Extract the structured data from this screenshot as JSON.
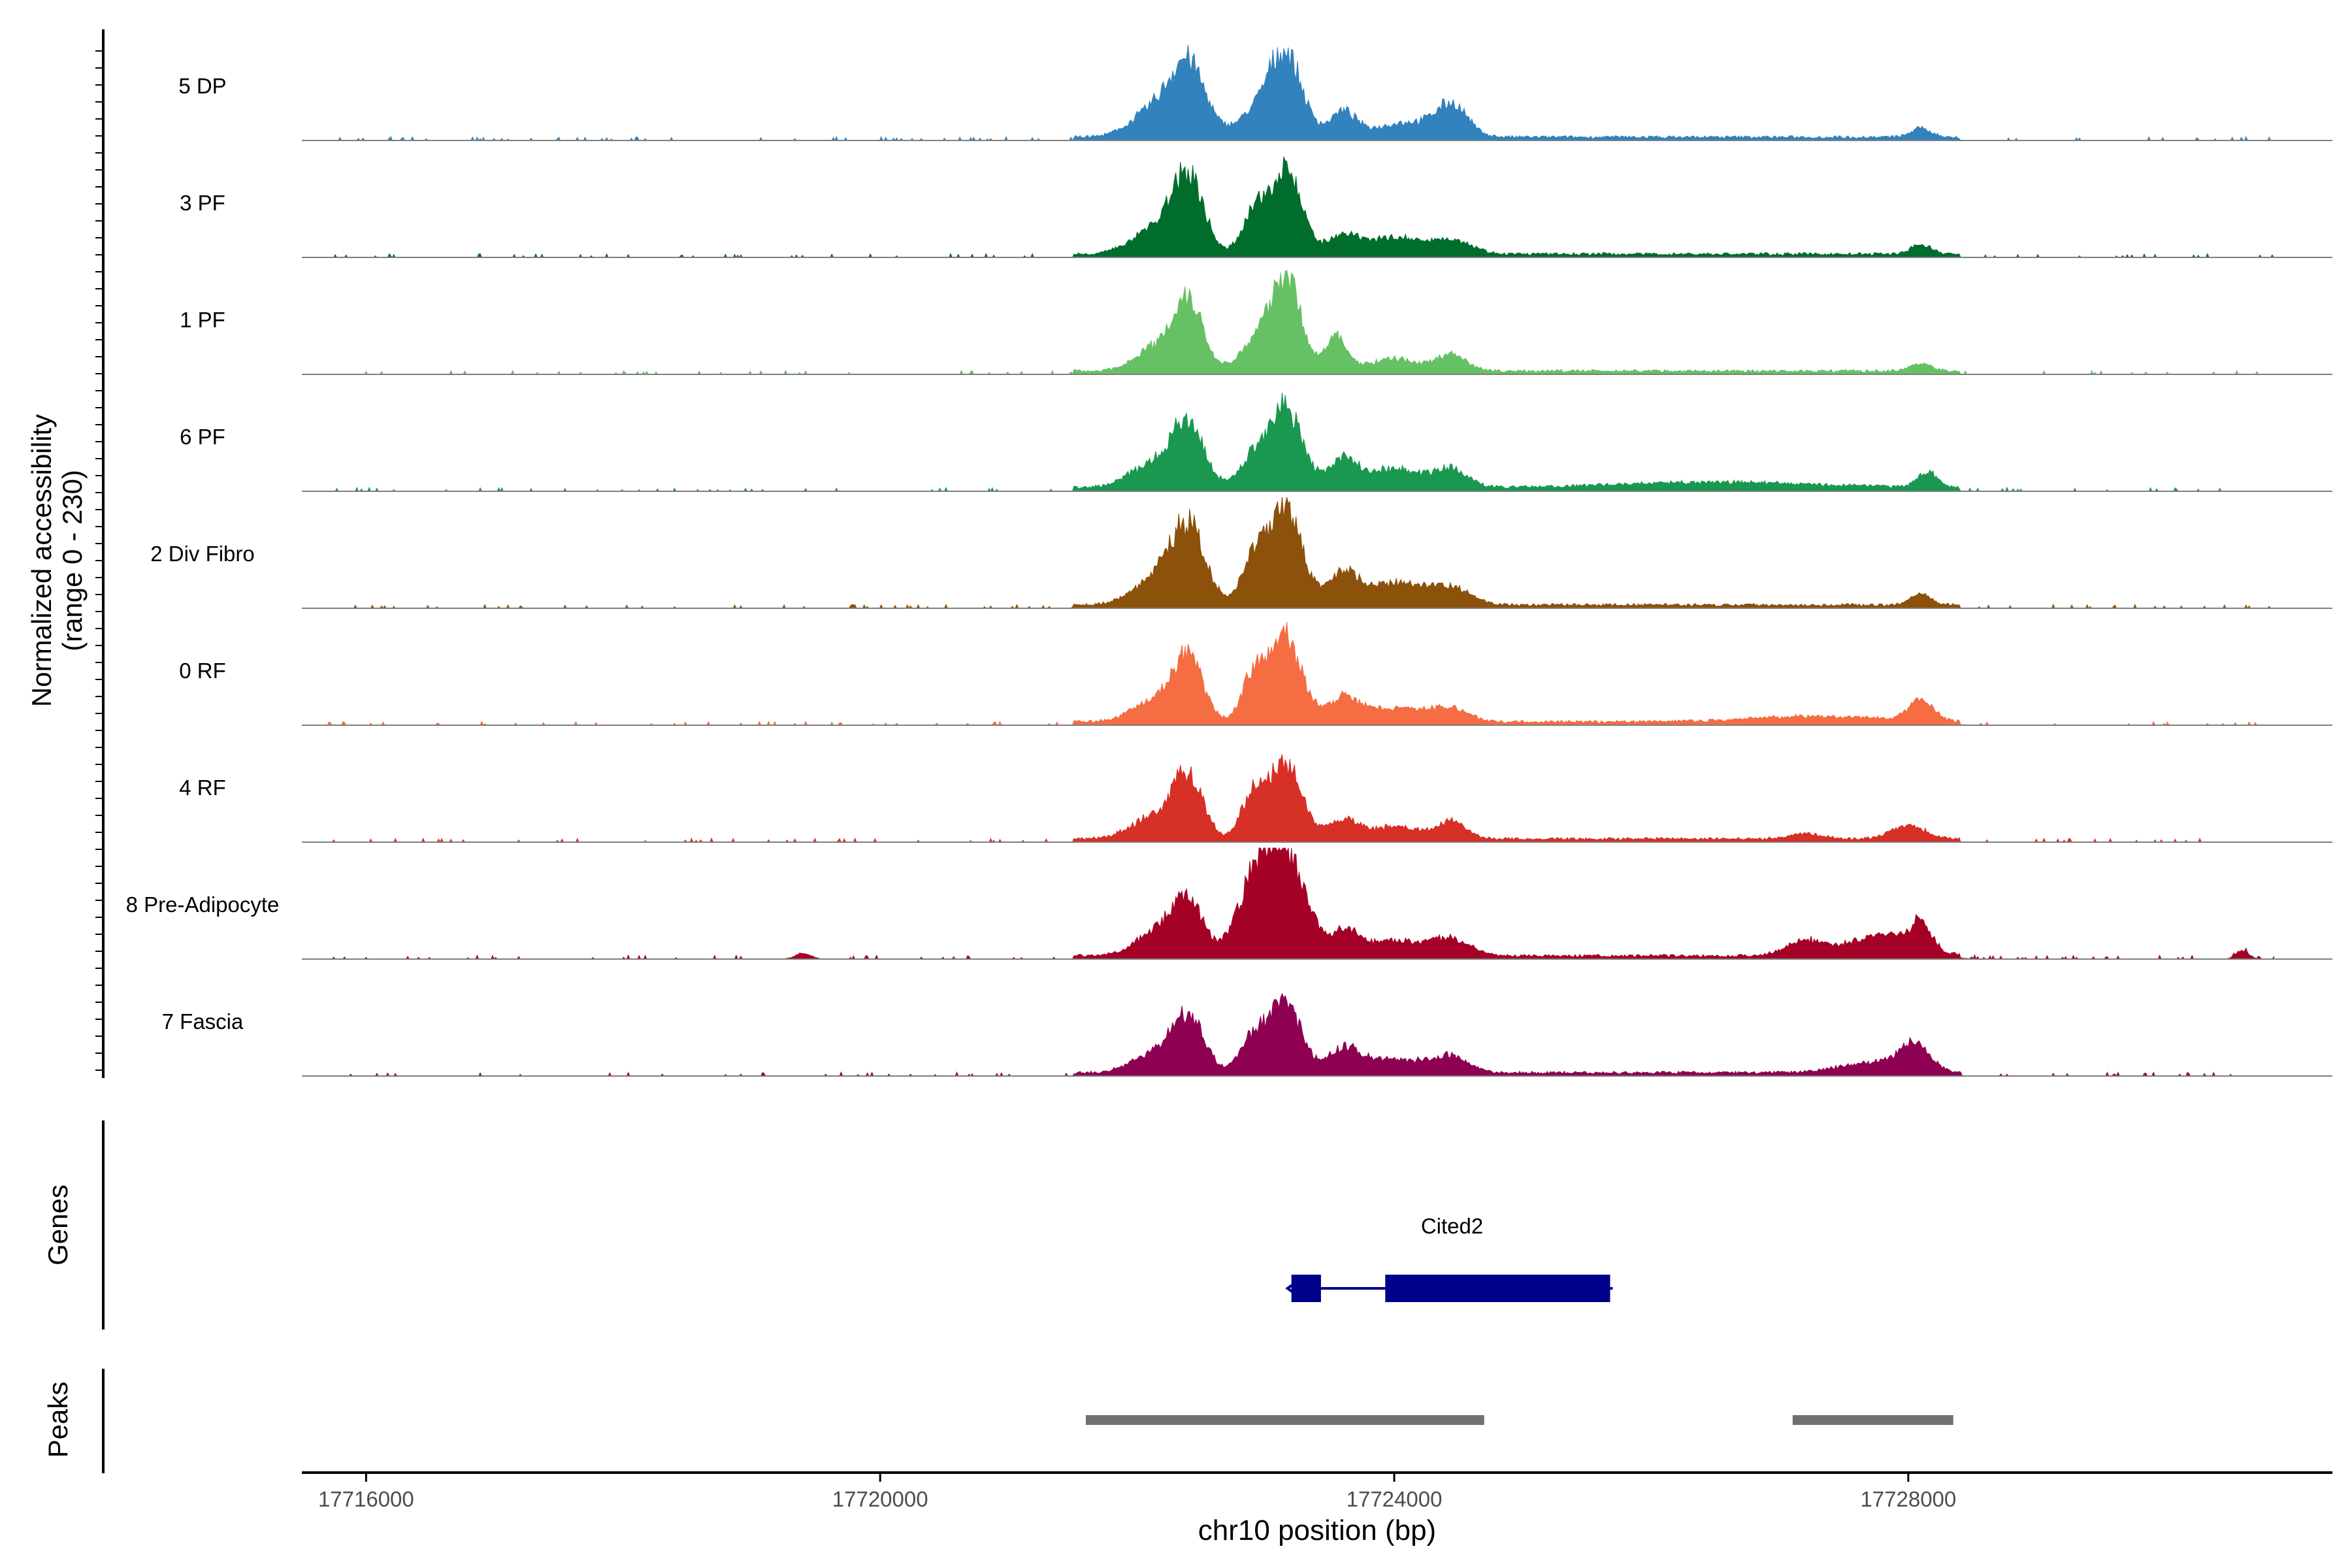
{
  "chart_data": {
    "type": "area",
    "chromosome": "chr10",
    "xlabel": "chr10 position (bp)",
    "xlim": [
      17715500,
      17731300
    ],
    "xticks": [
      17716000,
      17720000,
      17724000,
      17728000
    ],
    "xtick_labels": [
      "17716000",
      "17720000",
      "17724000",
      "17728000"
    ],
    "ylabel_line1": "Normalized accessibility",
    "ylabel_line2": "(range 0 - 230)",
    "ylim": [
      0,
      230
    ],
    "series": [
      {
        "name": "5 DP",
        "color": "#3182BD",
        "peaks": [
          [
            17722400,
            140,
            130
          ],
          [
            17722150,
            60,
            180
          ],
          [
            17722900,
            40,
            150
          ],
          [
            17723150,
            170,
            130
          ],
          [
            17723600,
            50,
            100
          ],
          [
            17724100,
            30,
            250
          ],
          [
            17724450,
            60,
            120
          ],
          [
            17728100,
            18,
            80
          ]
        ]
      },
      {
        "name": "3 PF",
        "color": "#006D2C",
        "peaks": [
          [
            17722400,
            150,
            120
          ],
          [
            17722150,
            55,
            180
          ],
          [
            17722900,
            75,
            90
          ],
          [
            17723150,
            185,
            120
          ],
          [
            17723600,
            35,
            120
          ],
          [
            17724000,
            35,
            200
          ],
          [
            17724450,
            30,
            150
          ],
          [
            17728100,
            20,
            80
          ]
        ]
      },
      {
        "name": "1 PF",
        "color": "#66C164",
        "peaks": [
          [
            17722400,
            145,
            110
          ],
          [
            17722150,
            50,
            160
          ],
          [
            17722900,
            45,
            130
          ],
          [
            17723150,
            195,
            120
          ],
          [
            17723550,
            70,
            80
          ],
          [
            17724000,
            25,
            200
          ],
          [
            17724450,
            35,
            110
          ],
          [
            17728100,
            15,
            80
          ]
        ]
      },
      {
        "name": "6 PF",
        "color": "#1A9850",
        "peaks": [
          [
            17722400,
            120,
            120
          ],
          [
            17722150,
            50,
            200
          ],
          [
            17722900,
            55,
            110
          ],
          [
            17723150,
            165,
            130
          ],
          [
            17723600,
            55,
            110
          ],
          [
            17724000,
            40,
            220
          ],
          [
            17724450,
            35,
            130
          ],
          [
            17728150,
            30,
            80
          ],
          [
            17726500,
            12,
            800
          ]
        ]
      },
      {
        "name": "2 Div Fibro",
        "color": "#8C510A",
        "peaks": [
          [
            17722400,
            150,
            130
          ],
          [
            17722150,
            55,
            180
          ],
          [
            17722900,
            85,
            90
          ],
          [
            17723150,
            195,
            130
          ],
          [
            17723600,
            60,
            110
          ],
          [
            17724000,
            45,
            250
          ],
          [
            17724450,
            30,
            150
          ],
          [
            17728100,
            22,
            80
          ]
        ]
      },
      {
        "name": "0 RF",
        "color": "#F46D43",
        "peaks": [
          [
            17722400,
            125,
            110
          ],
          [
            17722150,
            45,
            180
          ],
          [
            17722900,
            85,
            90
          ],
          [
            17723150,
            175,
            130
          ],
          [
            17723600,
            45,
            110
          ],
          [
            17724000,
            30,
            250
          ],
          [
            17724450,
            25,
            130
          ],
          [
            17728100,
            45,
            90
          ],
          [
            17727300,
            12,
            500
          ]
        ]
      },
      {
        "name": "4 RF",
        "color": "#D73027",
        "peaks": [
          [
            17722400,
            125,
            110
          ],
          [
            17722150,
            50,
            180
          ],
          [
            17722900,
            85,
            90
          ],
          [
            17723150,
            155,
            130
          ],
          [
            17723600,
            40,
            110
          ],
          [
            17724000,
            25,
            200
          ],
          [
            17724450,
            35,
            110
          ],
          [
            17728000,
            28,
            130
          ],
          [
            17727200,
            12,
            120
          ]
        ]
      },
      {
        "name": "8 Pre-Adipocyte",
        "color": "#A50026",
        "peaks": [
          [
            17722400,
            110,
            120
          ],
          [
            17722150,
            50,
            160
          ],
          [
            17722900,
            130,
            130
          ],
          [
            17723150,
            220,
            150
          ],
          [
            17723600,
            45,
            120
          ],
          [
            17724000,
            30,
            250
          ],
          [
            17724450,
            30,
            150
          ],
          [
            17727800,
            45,
            250
          ],
          [
            17728100,
            50,
            80
          ],
          [
            17727200,
            30,
            150
          ],
          [
            17719400,
            12,
            60
          ],
          [
            17730600,
            18,
            50
          ]
        ]
      },
      {
        "name": "7 Fascia",
        "color": "#8E0152",
        "peaks": [
          [
            17722400,
            110,
            120
          ],
          [
            17722150,
            40,
            180
          ],
          [
            17722900,
            70,
            100
          ],
          [
            17723150,
            150,
            120
          ],
          [
            17723600,
            45,
            120
          ],
          [
            17724000,
            30,
            250
          ],
          [
            17724450,
            30,
            130
          ],
          [
            17728050,
            55,
            120
          ],
          [
            17727700,
            20,
            250
          ]
        ]
      }
    ],
    "genes": [
      {
        "name": "Cited2",
        "start": 17723200,
        "end": 17725700,
        "strand": "-",
        "color": "#00008B",
        "exons": [
          [
            17723200,
            17723430
          ],
          [
            17723930,
            17725680
          ]
        ]
      }
    ],
    "genes_label": "Genes",
    "peaks_label": "Peaks",
    "peak_regions": [
      [
        17721600,
        17724700
      ],
      [
        17727100,
        17728350
      ]
    ],
    "peak_color": "#707070",
    "grid": false,
    "legend": "none"
  }
}
